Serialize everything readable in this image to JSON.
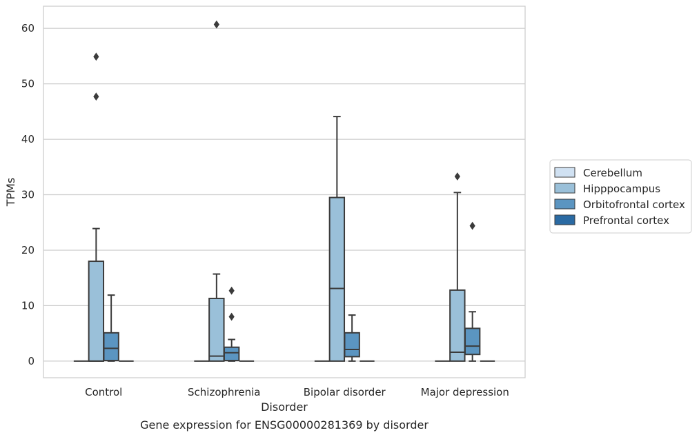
{
  "chart_data": {
    "type": "box",
    "title": "Gene expression for ENSG00000281369 by disorder",
    "xlabel": "Disorder",
    "ylabel": "TPMs",
    "ylim": [
      -3,
      64
    ],
    "yticks": [
      0,
      10,
      20,
      30,
      40,
      50,
      60
    ],
    "grid": "horizontal",
    "legend_position": "right",
    "categories": [
      "Control",
      "Schizophrenia",
      "Bipolar disorder",
      "Major depression"
    ],
    "series": [
      {
        "name": "Cerebellum",
        "color": "#d0e1f2",
        "boxes": [
          {
            "q1": 0,
            "median": 0,
            "q3": 0,
            "whislo": 0,
            "whishi": 0,
            "fliers": []
          },
          {
            "q1": 0,
            "median": 0,
            "q3": 0,
            "whislo": 0,
            "whishi": 0,
            "fliers": []
          },
          {
            "q1": 0,
            "median": 0,
            "q3": 0,
            "whislo": 0,
            "whishi": 0,
            "fliers": []
          },
          {
            "q1": 0,
            "median": 0,
            "q3": 0,
            "whislo": 0,
            "whishi": 0,
            "fliers": []
          }
        ]
      },
      {
        "name": "Hipppocampus",
        "color": "#9ac0d9",
        "boxes": [
          {
            "q1": 0,
            "median": 0,
            "q3": 18.0,
            "whislo": 0,
            "whishi": 23.9,
            "fliers": [
              47.7,
              54.9
            ]
          },
          {
            "q1": 0,
            "median": 0.9,
            "q3": 11.3,
            "whislo": 0,
            "whishi": 15.7,
            "fliers": [
              60.7
            ]
          },
          {
            "q1": 0,
            "median": 13.1,
            "q3": 29.5,
            "whislo": 0,
            "whishi": 44.1,
            "fliers": []
          },
          {
            "q1": 0,
            "median": 1.6,
            "q3": 12.8,
            "whislo": 0,
            "whishi": 30.4,
            "fliers": [
              33.3
            ]
          }
        ]
      },
      {
        "name": "Orbitofrontal cortex",
        "color": "#5b95c1",
        "boxes": [
          {
            "q1": 0.1,
            "median": 2.3,
            "q3": 5.1,
            "whislo": 0,
            "whishi": 11.9,
            "fliers": []
          },
          {
            "q1": 0.1,
            "median": 1.5,
            "q3": 2.5,
            "whislo": 0,
            "whishi": 3.9,
            "fliers": [
              8.0,
              12.7
            ]
          },
          {
            "q1": 0.8,
            "median": 2.1,
            "q3": 5.1,
            "whislo": 0,
            "whishi": 8.3,
            "fliers": []
          },
          {
            "q1": 1.2,
            "median": 2.7,
            "q3": 5.9,
            "whislo": 0,
            "whishi": 8.9,
            "fliers": [
              24.4
            ]
          }
        ]
      },
      {
        "name": "Prefrontal cortex",
        "color": "#2a6aa3",
        "boxes": [
          {
            "q1": 0,
            "median": 0,
            "q3": 0,
            "whislo": 0,
            "whishi": 0,
            "fliers": []
          },
          {
            "q1": 0,
            "median": 0,
            "q3": 0,
            "whislo": 0,
            "whishi": 0,
            "fliers": []
          },
          {
            "q1": 0,
            "median": 0,
            "q3": 0,
            "whislo": 0,
            "whishi": 0,
            "fliers": []
          },
          {
            "q1": 0,
            "median": 0,
            "q3": 0,
            "whislo": 0,
            "whishi": 0,
            "fliers": []
          }
        ]
      }
    ]
  }
}
